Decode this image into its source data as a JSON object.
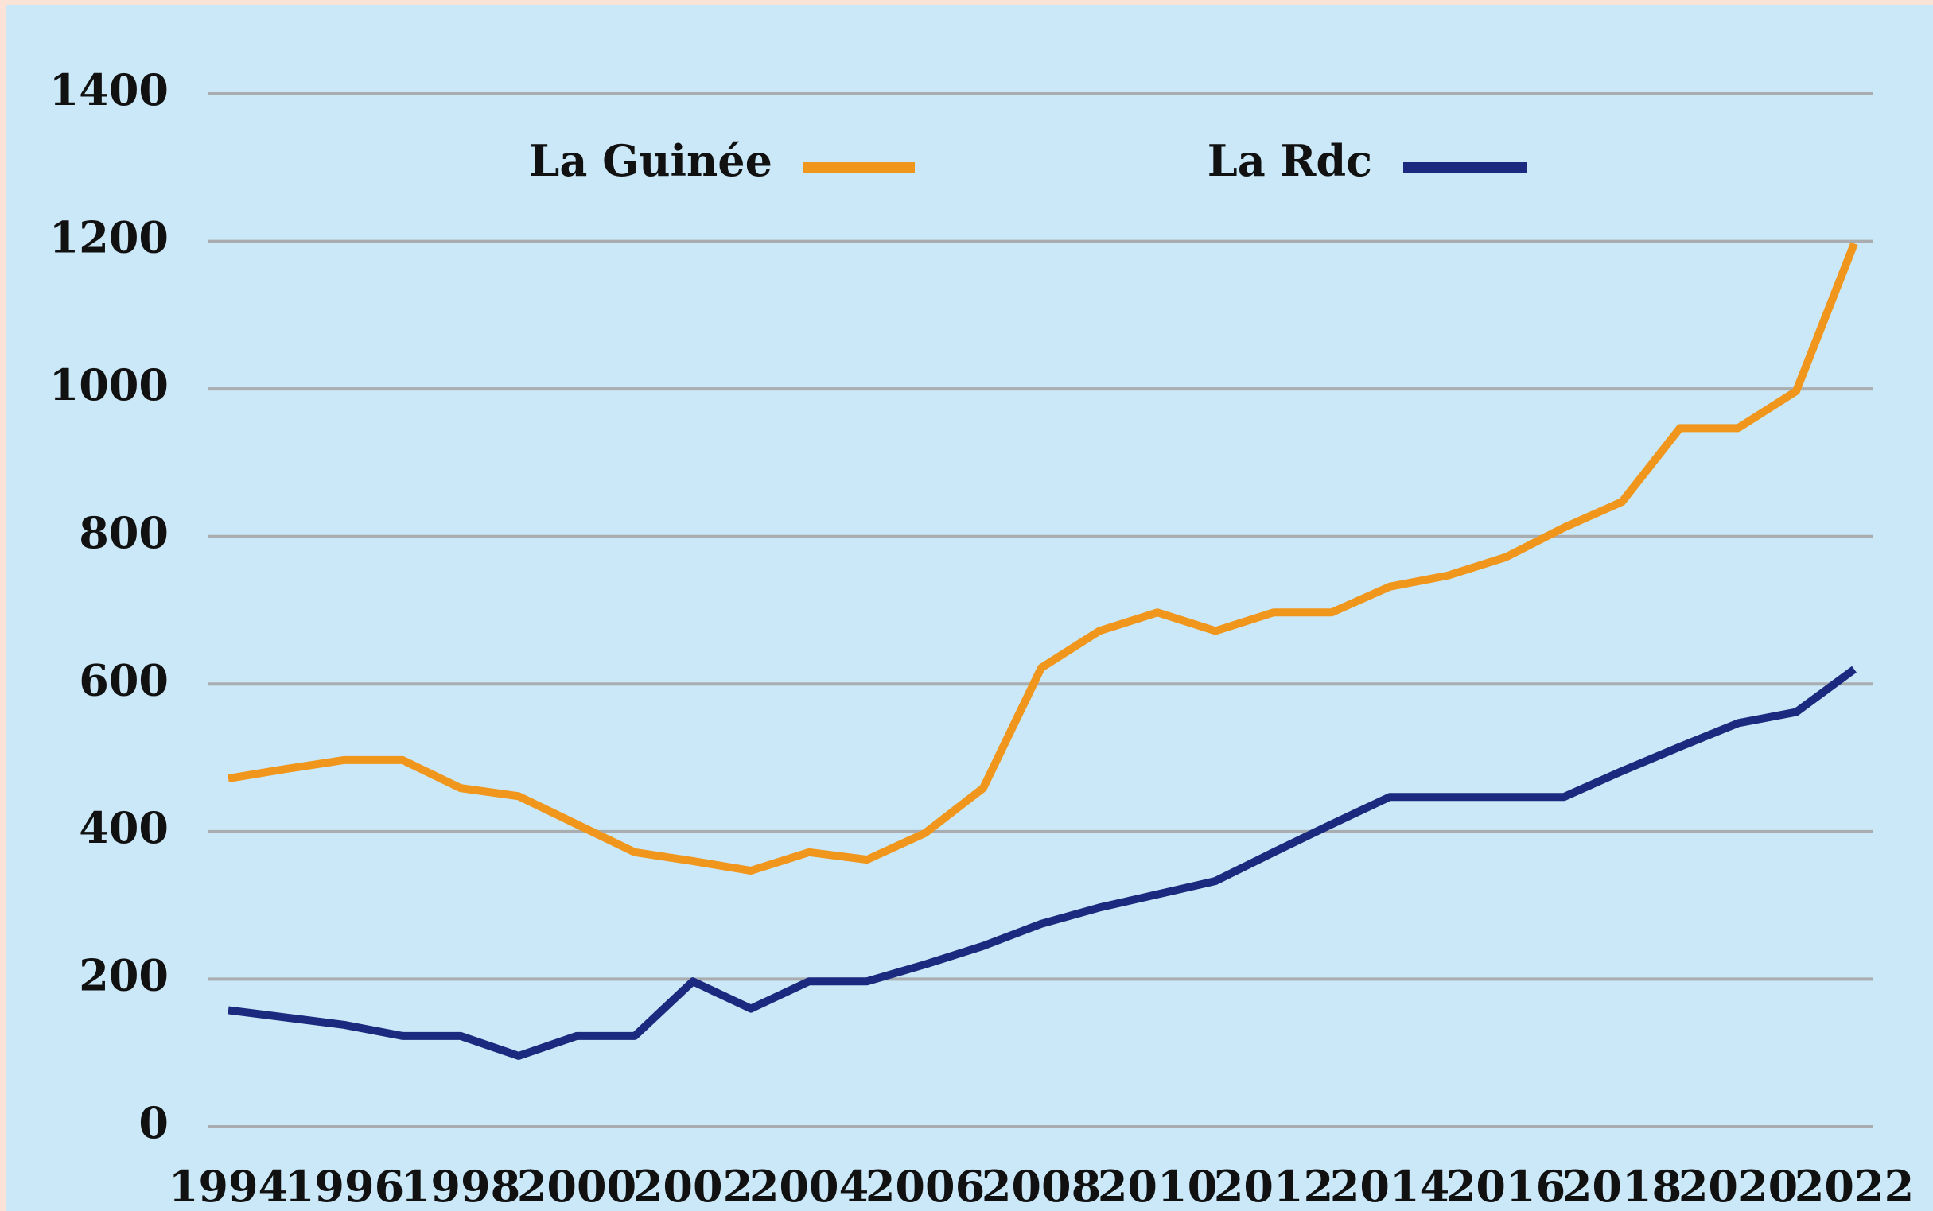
{
  "chart_data": {
    "type": "line",
    "categories": [
      "1994",
      null,
      "1996",
      null,
      "1998",
      null,
      "2000",
      null,
      "2002",
      null,
      "2004",
      null,
      "2006",
      null,
      "2008",
      null,
      "2010",
      null,
      "2012",
      null,
      "2014",
      null,
      "2016",
      null,
      "2018",
      null,
      "2020",
      null,
      "2022"
    ],
    "series": [
      {
        "name": "La Guinée",
        "color": "#f1961c",
        "values": [
          472,
          485,
          497,
          497,
          459,
          448,
          410,
          372,
          360,
          347,
          372,
          362,
          398,
          459,
          622,
          672,
          697,
          672,
          697,
          697,
          732,
          747,
          772,
          812,
          847,
          947,
          947,
          997,
          1197
        ]
      },
      {
        "name": "La Rdc",
        "color": "#1b2a7e",
        "values": [
          158,
          148,
          138,
          123,
          123,
          96,
          123,
          123,
          197,
          160,
          197,
          197,
          220,
          245,
          275,
          297,
          315,
          333,
          372,
          410,
          447,
          447,
          447,
          447,
          482,
          515,
          547,
          562,
          620
        ]
      }
    ],
    "ylim": [
      0,
      1400
    ],
    "yticks": [
      0,
      200,
      400,
      600,
      800,
      1000,
      1200,
      1400
    ],
    "grid": true
  }
}
